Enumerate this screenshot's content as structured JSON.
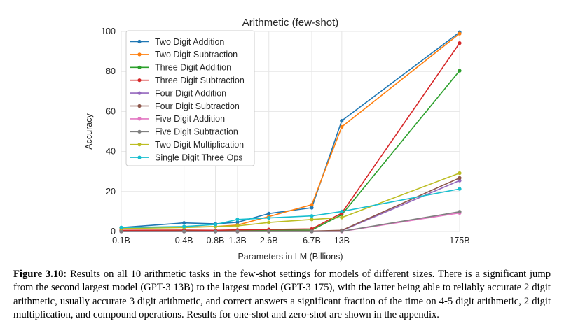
{
  "chart_data": {
    "type": "line",
    "title": "Arithmetic (few-shot)",
    "xlabel": "Parameters in LM (Billions)",
    "ylabel": "Accuracy",
    "x_scale": "log",
    "x": [
      0.1,
      0.4,
      0.8,
      1.3,
      2.6,
      6.7,
      13,
      175
    ],
    "xticklabels": [
      "0.1B",
      "0.4B",
      "0.8B",
      "1.3B",
      "2.6B",
      "6.7B",
      "13B",
      "175B"
    ],
    "yticks": [
      0,
      20,
      40,
      60,
      80,
      100
    ],
    "ylim": [
      0,
      100
    ],
    "grid": true,
    "legend_position": "top-left",
    "series": [
      {
        "name": "Two Digit Addition",
        "color": "#1f77b4",
        "values": [
          2.0,
          4.3,
          3.8,
          4.6,
          9.0,
          11.9,
          55.4,
          99.6
        ]
      },
      {
        "name": "Two Digit Subtraction",
        "color": "#ff7f0e",
        "values": [
          1.8,
          2.2,
          2.5,
          3.2,
          7.5,
          13.4,
          52.3,
          98.9
        ]
      },
      {
        "name": "Three Digit Addition",
        "color": "#2ca02c",
        "values": [
          0.5,
          0.4,
          0.3,
          0.4,
          0.7,
          0.7,
          8.4,
          80.4
        ]
      },
      {
        "name": "Three Digit Subtraction",
        "color": "#d62728",
        "values": [
          0.6,
          0.7,
          0.6,
          0.8,
          1.0,
          1.3,
          9.2,
          94.2
        ]
      },
      {
        "name": "Four Digit Addition",
        "color": "#9467bd",
        "values": [
          0.0,
          0.0,
          0.0,
          0.1,
          0.1,
          0.1,
          0.4,
          25.5
        ]
      },
      {
        "name": "Four Digit Subtraction",
        "color": "#8c564b",
        "values": [
          0.1,
          0.1,
          0.1,
          0.1,
          0.2,
          0.2,
          0.6,
          26.8
        ]
      },
      {
        "name": "Five Digit Addition",
        "color": "#e377c2",
        "values": [
          0.0,
          0.0,
          0.0,
          0.0,
          0.0,
          0.0,
          0.0,
          9.3
        ]
      },
      {
        "name": "Five Digit Subtraction",
        "color": "#7f7f7f",
        "values": [
          0.0,
          0.0,
          0.0,
          0.0,
          0.0,
          0.0,
          0.1,
          9.9
        ]
      },
      {
        "name": "Two Digit Multiplication",
        "color": "#bcbd22",
        "values": [
          1.5,
          2.0,
          2.5,
          2.8,
          4.5,
          6.0,
          7.0,
          29.2
        ]
      },
      {
        "name": "Single Digit Three Ops",
        "color": "#17becf",
        "values": [
          2.0,
          2.5,
          3.5,
          6.0,
          6.8,
          7.8,
          10.0,
          21.3
        ]
      }
    ]
  },
  "caption": {
    "label": "Figure 3.10:",
    "text": " Results on all 10 arithmetic tasks in the few-shot settings for models of different sizes. There is a significant jump from the second largest model (GPT-3 13B) to the largest model (GPT-3 175), with the latter being able to reliably accurate 2 digit arithmetic, usually accurate 3 digit arithmetic, and correct answers a significant fraction of the time on 4-5 digit arithmetic, 2 digit multiplication, and compound operations. Results for one-shot and zero-shot are shown in the appendix."
  }
}
